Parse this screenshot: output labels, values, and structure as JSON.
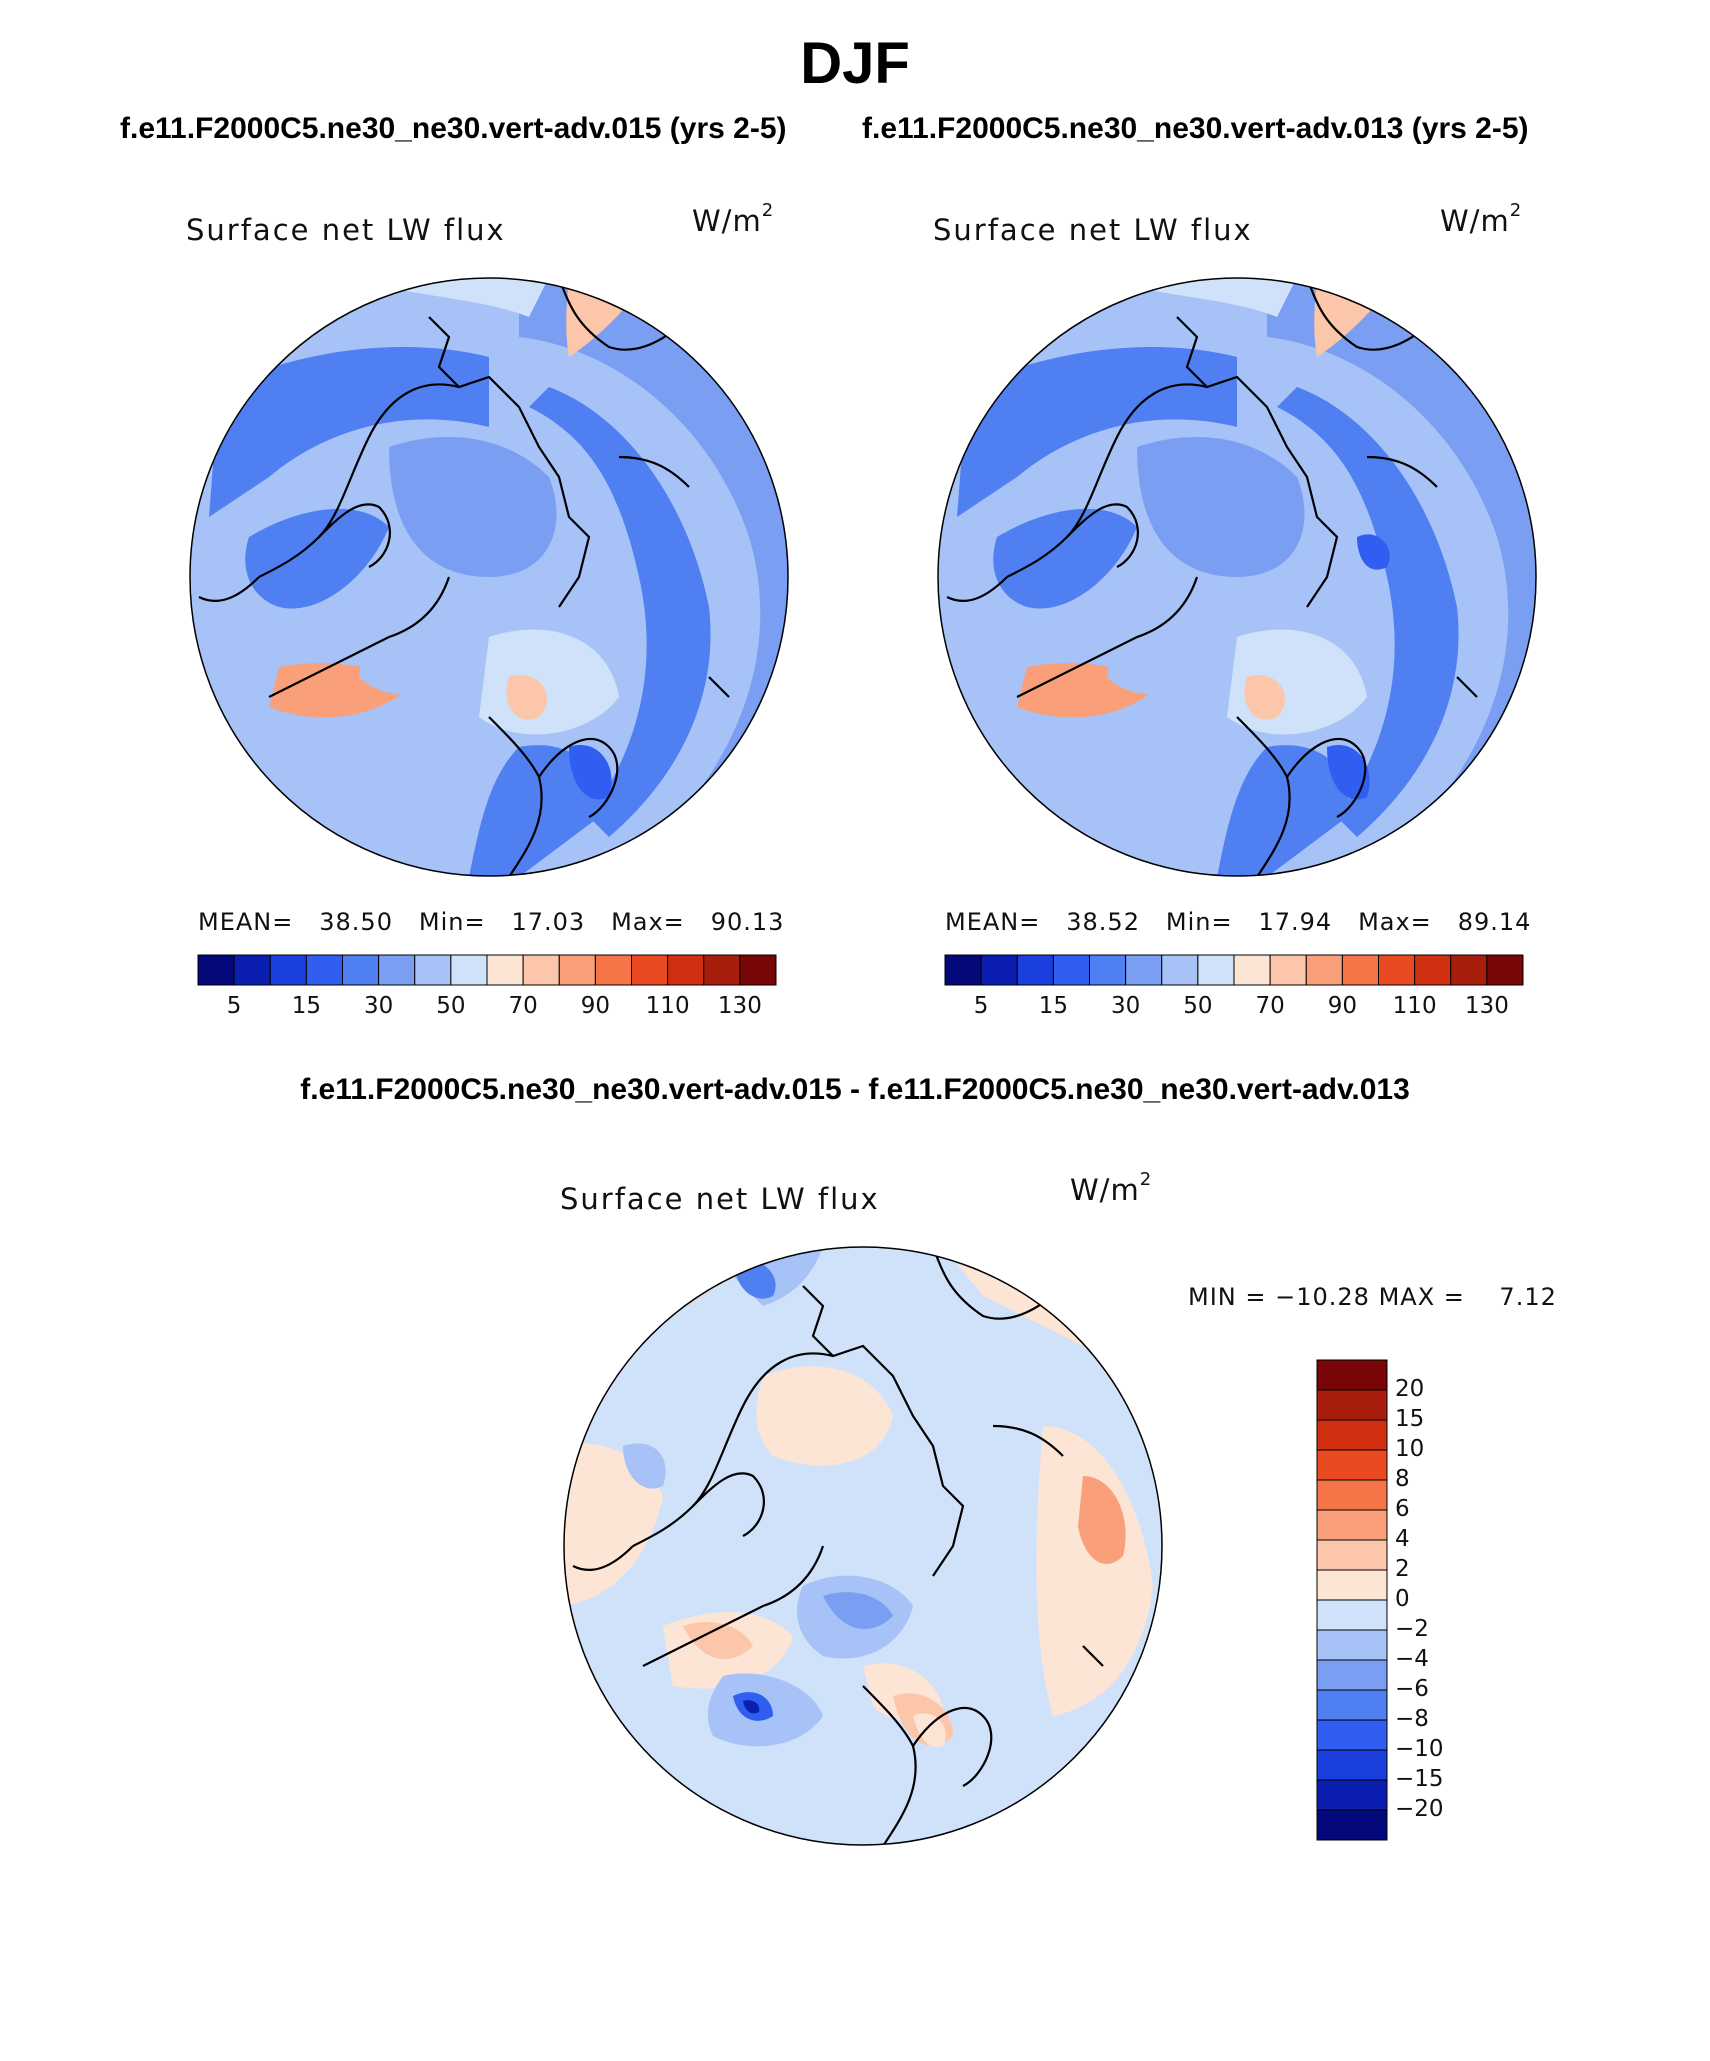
{
  "title": "DJF",
  "case_titles": [
    "f.e11.F2000C5.ne30_ne30.vert-adv.015 (yrs 2-5)",
    "f.e11.F2000C5.ne30_ne30.vert-adv.013 (yrs 2-5)"
  ],
  "diff_title": "f.e11.F2000C5.ne30_ne30.vert-adv.015 - f.e11.F2000C5.ne30_ne30.vert-adv.013",
  "chart_data": [
    {
      "type": "heatmap",
      "projection": "north-polar-stereographic",
      "title": "Surface net LW flux",
      "units": "W/m",
      "units_exp": "2",
      "stats": {
        "mean_label": "MEAN=",
        "mean": "38.50",
        "min_label": "Min=",
        "min": "17.03",
        "max_label": "Max=",
        "max": "90.13"
      },
      "colorbar": {
        "levels": [
          5,
          10,
          15,
          20,
          30,
          40,
          50,
          60,
          70,
          80,
          90,
          100,
          110,
          120,
          130
        ],
        "labels": [
          "5",
          "15",
          "30",
          "50",
          "70",
          "90",
          "110",
          "130"
        ],
        "colors": [
          "#05087a",
          "#0a1fb0",
          "#1a3fdc",
          "#2f5ef0",
          "#4f7ff0",
          "#7a9ff2",
          "#a6c2f6",
          "#d0e2fa",
          "#fde5d6",
          "#fcc6aa",
          "#f9a07a",
          "#f57448",
          "#ea4a22",
          "#d03010",
          "#a81e0c",
          "#780606"
        ]
      }
    },
    {
      "type": "heatmap",
      "projection": "north-polar-stereographic",
      "title": "Surface net LW flux",
      "units": "W/m",
      "units_exp": "2",
      "stats": {
        "mean_label": "MEAN=",
        "mean": "38.52",
        "min_label": "Min=",
        "min": "17.94",
        "max_label": "Max=",
        "max": "89.14"
      },
      "colorbar": {
        "levels": [
          5,
          10,
          15,
          20,
          30,
          40,
          50,
          60,
          70,
          80,
          90,
          100,
          110,
          120,
          130
        ],
        "labels": [
          "5",
          "15",
          "30",
          "50",
          "70",
          "90",
          "110",
          "130"
        ],
        "colors": [
          "#05087a",
          "#0a1fb0",
          "#1a3fdc",
          "#2f5ef0",
          "#4f7ff0",
          "#7a9ff2",
          "#a6c2f6",
          "#d0e2fa",
          "#fde5d6",
          "#fcc6aa",
          "#f9a07a",
          "#f57448",
          "#ea4a22",
          "#d03010",
          "#a81e0c",
          "#780606"
        ]
      }
    },
    {
      "type": "heatmap",
      "projection": "north-polar-stereographic",
      "title": "Surface net LW flux",
      "units": "W/m",
      "units_exp": "2",
      "stats": {
        "min_label": "MIN =",
        "min": "−10.28",
        "max_label": "MAX =",
        "max": "7.12"
      },
      "colorbar": {
        "orientation": "vertical",
        "labels_top_to_bottom": [
          "20",
          "15",
          "10",
          "8",
          "6",
          "4",
          "2",
          "0",
          "−2",
          "−4",
          "−6",
          "−8",
          "−10",
          "−15",
          "−20"
        ],
        "colors_top_to_bottom": [
          "#780606",
          "#a81e0c",
          "#d03010",
          "#ea4a22",
          "#f57448",
          "#f9a07a",
          "#fcc6aa",
          "#fde5d6",
          "#d0e2fa",
          "#a6c2f6",
          "#7a9ff2",
          "#4f7ff0",
          "#2f5ef0",
          "#1a3fdc",
          "#0a1fb0",
          "#05087a"
        ]
      }
    }
  ]
}
